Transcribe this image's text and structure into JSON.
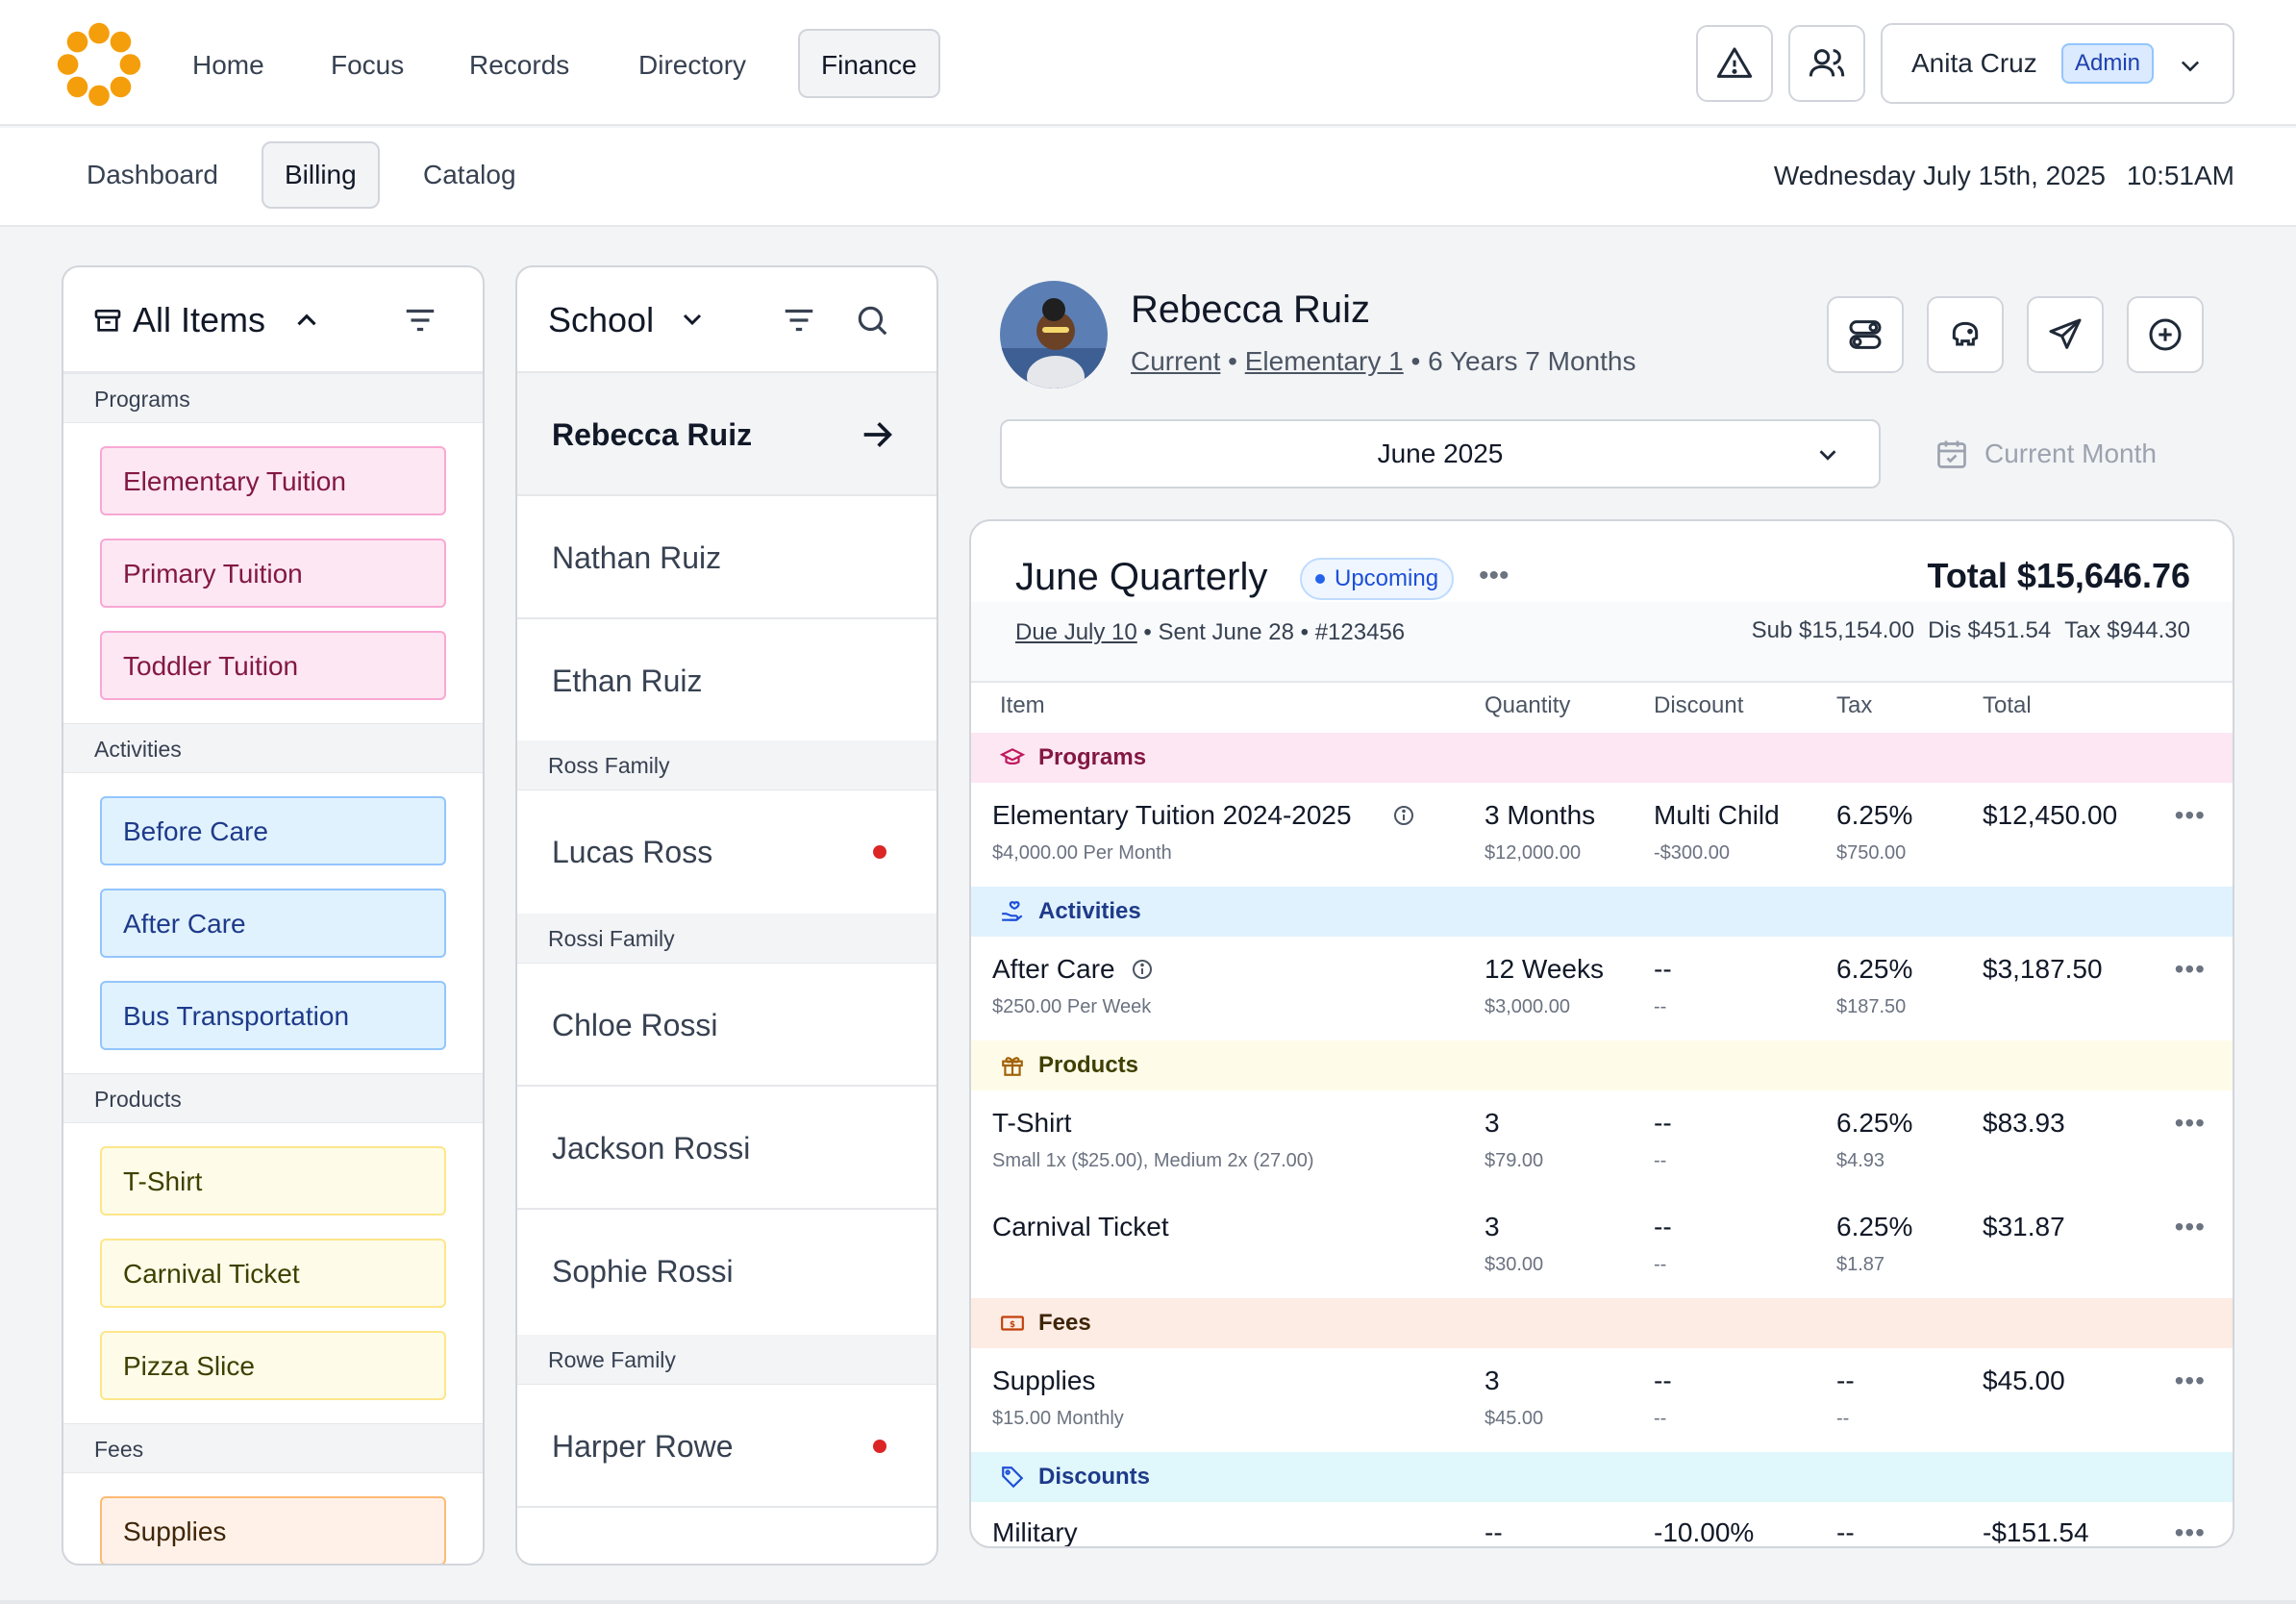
{
  "nav": {
    "items": [
      "Home",
      "Focus",
      "Records",
      "Directory",
      "Finance"
    ],
    "active": "Finance",
    "user": {
      "name": "Anita Cruz",
      "role": "Admin"
    }
  },
  "subnav": {
    "items": [
      "Dashboard",
      "Billing",
      "Catalog"
    ],
    "active": "Billing",
    "date": "Wednesday July 15th, 2025",
    "time": "10:51AM"
  },
  "items_panel": {
    "title": "All Items",
    "sections": [
      {
        "name": "Programs",
        "items": [
          "Elementary Tuition",
          "Primary Tuition",
          "Toddler Tuition"
        ]
      },
      {
        "name": "Activities",
        "items": [
          "Before Care",
          "After Care",
          "Bus Transportation"
        ]
      },
      {
        "name": "Products",
        "items": [
          "T-Shirt",
          "Carnival Ticket",
          "Pizza Slice"
        ]
      },
      {
        "name": "Fees",
        "items": [
          "Supplies"
        ]
      }
    ]
  },
  "students_panel": {
    "title": "School",
    "selected": "Rebecca Ruiz",
    "students": [
      "Rebecca Ruiz",
      "Nathan Ruiz",
      "Ethan Ruiz"
    ],
    "families": [
      {
        "name": "Ross Family",
        "students": [
          "Lucas Ross"
        ]
      },
      {
        "name": "Rossi Family",
        "students": [
          "Chloe Rossi",
          "Jackson Rossi",
          "Sophie Rossi"
        ]
      },
      {
        "name": "Rowe Family",
        "students": [
          "Harper Rowe"
        ]
      }
    ]
  },
  "student": {
    "name": "Rebecca Ruiz",
    "status": "Current",
    "program": "Elementary 1",
    "age": "6 Years 7 Months"
  },
  "month_select": {
    "value": "June 2025",
    "current_label": "Current Month"
  },
  "invoice": {
    "title": "June Quarterly",
    "status": "Upcoming",
    "total": "Total $15,646.76",
    "due": "Due July 10",
    "sent": "Sent June 28",
    "number": "#123456",
    "sub": "Sub $15,154.00",
    "dis": "Dis $451.54",
    "tax": "Tax $944.30",
    "columns": [
      "Item",
      "Quantity",
      "Discount",
      "Tax",
      "Total"
    ],
    "groups": {
      "programs": "Programs",
      "activities": "Activities",
      "products": "Products",
      "fees": "Fees",
      "discounts": "Discounts"
    },
    "rows": [
      {
        "item": "Elementary Tuition 2024-2025",
        "item_sub": "$4,000.00 Per Month",
        "qty": "3 Months",
        "qty_sub": "$12,000.00",
        "disc": "Multi Child",
        "disc_sub": "-$300.00",
        "tax": "6.25%",
        "tax_sub": "$750.00",
        "total": "$12,450.00"
      },
      {
        "item": "After Care",
        "item_sub": "$250.00 Per Week",
        "qty": "12 Weeks",
        "qty_sub": "$3,000.00",
        "disc": "--",
        "disc_sub": "--",
        "tax": "6.25%",
        "tax_sub": "$187.50",
        "total": "$3,187.50"
      },
      {
        "item": "T-Shirt",
        "item_sub": "Small 1x ($25.00), Medium 2x (27.00)",
        "qty": "3",
        "qty_sub": "$79.00",
        "disc": "--",
        "disc_sub": "--",
        "tax": "6.25%",
        "tax_sub": "$4.93",
        "total": "$83.93"
      },
      {
        "item": "Carnival Ticket",
        "item_sub": "",
        "qty": "3",
        "qty_sub": "$30.00",
        "disc": "--",
        "disc_sub": "--",
        "tax": "6.25%",
        "tax_sub": "$1.87",
        "total": "$31.87"
      },
      {
        "item": "Supplies",
        "item_sub": "$15.00 Monthly",
        "qty": "3",
        "qty_sub": "$45.00",
        "disc": "--",
        "disc_sub": "--",
        "tax": "--",
        "tax_sub": "--",
        "total": "$45.00"
      },
      {
        "item": "Military",
        "item_sub": "",
        "qty": "--",
        "qty_sub": "",
        "disc": "-10.00%",
        "disc_sub": "",
        "tax": "--",
        "tax_sub": "",
        "total": "-$151.54"
      }
    ]
  },
  "colors": {
    "accent": "#f59e0b",
    "programs": "#fce7f3",
    "activities": "#e0f2fe",
    "products": "#fefce8",
    "fees": "#fdece4",
    "discounts": "#e0f7fb"
  }
}
